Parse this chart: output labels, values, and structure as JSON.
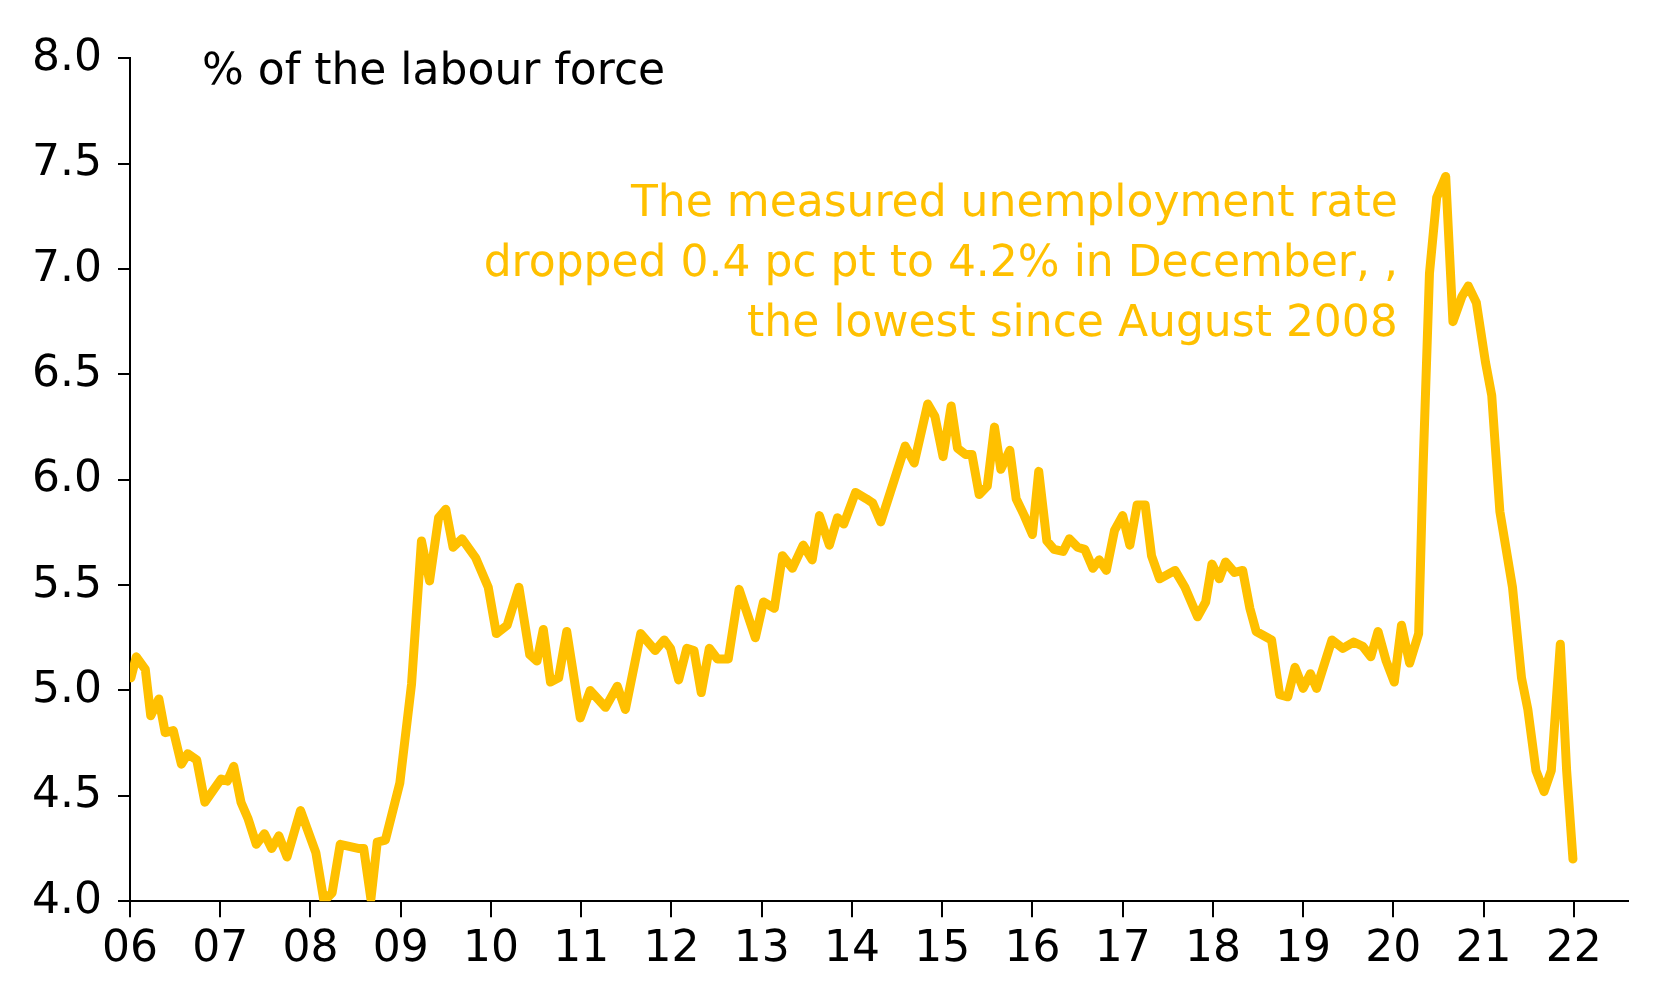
{
  "chart_data": {
    "type": "line",
    "ylabel": "% of the labour force",
    "annotations": [
      "The measured unemployment rate\ndropped 0.4 pc pt to 4.2% in December, ,\nthe lowest since August 2008"
    ],
    "series": [
      {
        "color": "#ffc000",
        "x": [
          2006.01,
          2006.07,
          2006.17,
          2006.23,
          2006.32,
          2006.39,
          2006.48,
          2006.57,
          2006.64,
          2006.74,
          2006.83,
          2007.01,
          2007.08,
          2007.15,
          2007.23,
          2007.31,
          2007.4,
          2007.49,
          2007.57,
          2007.65,
          2007.74,
          2007.89,
          2008.06,
          2008.15,
          2008.24,
          2008.33,
          2008.54,
          2008.59,
          2008.67,
          2008.74,
          2008.83,
          2008.99,
          2009.12,
          2009.23,
          2009.32,
          2009.42,
          2009.5,
          2009.58,
          2009.68,
          2009.83,
          2009.97,
          2010.06,
          2010.18,
          2010.31,
          2010.43,
          2010.51,
          2010.58,
          2010.66,
          2010.75,
          2010.84,
          2010.99,
          2011.1,
          2011.27,
          2011.4,
          2011.49,
          2011.66,
          2011.82,
          2011.92,
          2011.99,
          2012.08,
          2012.17,
          2012.25,
          2012.33,
          2012.42,
          2012.51,
          2012.63,
          2012.75,
          2012.93,
          2013.02,
          2013.14,
          2013.23,
          2013.34,
          2013.46,
          2013.56,
          2013.64,
          2013.75,
          2013.84,
          2013.91,
          2014.04,
          2014.16,
          2014.23,
          2014.32,
          2014.59,
          2014.69,
          2014.84,
          2014.92,
          2015.01,
          2015.1,
          2015.17,
          2015.26,
          2015.33,
          2015.41,
          2015.5,
          2015.58,
          2015.65,
          2015.75,
          2015.82,
          2015.91,
          2016.0,
          2016.07,
          2016.16,
          2016.24,
          2016.34,
          2016.41,
          2016.5,
          2016.58,
          2016.67,
          2016.74,
          2016.82,
          2016.91,
          2017.0,
          2017.08,
          2017.16,
          2017.25,
          2017.32,
          2017.41,
          2017.58,
          2017.69,
          2017.83,
          2017.92,
          2017.99,
          2018.07,
          2018.14,
          2018.24,
          2018.33,
          2018.41,
          2018.48,
          2018.65,
          2018.74,
          2018.83,
          2018.91,
          2019.0,
          2019.08,
          2019.15,
          2019.32,
          2019.44,
          2019.56,
          2019.66,
          2019.75,
          2019.83,
          2019.92,
          2020.01,
          2020.09,
          2020.18,
          2020.28,
          2020.33,
          2020.4,
          2020.48,
          2020.58,
          2020.66,
          2020.76,
          2020.83,
          2020.92,
          2021.02,
          2021.09,
          2021.18,
          2021.32,
          2021.42,
          2021.49,
          2021.58,
          2021.67,
          2021.75,
          2021.85,
          2021.92,
          2021.99
        ],
        "values": [
          5.06,
          5.16,
          5.1,
          4.88,
          4.96,
          4.8,
          4.81,
          4.65,
          4.7,
          4.67,
          4.47,
          4.58,
          4.57,
          4.64,
          4.47,
          4.39,
          4.27,
          4.32,
          4.25,
          4.31,
          4.21,
          4.43,
          4.23,
          4.0,
          4.04,
          4.27,
          4.25,
          4.25,
          4.01,
          4.28,
          4.29,
          4.56,
          5.03,
          5.71,
          5.52,
          5.82,
          5.86,
          5.68,
          5.72,
          5.63,
          5.49,
          5.27,
          5.31,
          5.49,
          5.17,
          5.14,
          5.29,
          5.04,
          5.06,
          5.28,
          4.87,
          5.0,
          4.92,
          5.02,
          4.91,
          5.27,
          5.19,
          5.24,
          5.2,
          5.05,
          5.2,
          5.19,
          4.99,
          5.2,
          5.15,
          5.15,
          5.48,
          5.25,
          5.42,
          5.39,
          5.64,
          5.58,
          5.69,
          5.62,
          5.83,
          5.69,
          5.82,
          5.79,
          5.94,
          5.91,
          5.89,
          5.8,
          6.16,
          6.08,
          6.36,
          6.3,
          6.11,
          6.35,
          6.15,
          6.12,
          6.12,
          5.93,
          5.97,
          6.25,
          6.05,
          6.14,
          5.91,
          5.83,
          5.74,
          6.04,
          5.71,
          5.67,
          5.66,
          5.72,
          5.68,
          5.67,
          5.58,
          5.62,
          5.57,
          5.76,
          5.83,
          5.69,
          5.88,
          5.88,
          5.64,
          5.53,
          5.57,
          5.49,
          5.35,
          5.42,
          5.6,
          5.53,
          5.61,
          5.56,
          5.57,
          5.39,
          5.28,
          5.24,
          4.98,
          4.97,
          5.11,
          5.01,
          5.08,
          5.01,
          5.24,
          5.2,
          5.23,
          5.21,
          5.16,
          5.28,
          5.14,
          5.04,
          5.31,
          5.13,
          5.27,
          6.07,
          6.98,
          7.34,
          7.44,
          6.75,
          6.87,
          6.92,
          6.84,
          6.56,
          6.4,
          5.85,
          5.49,
          5.06,
          4.91,
          4.62,
          4.52,
          4.62,
          5.22,
          4.62,
          4.2
        ]
      }
    ],
    "xlim": [
      2006,
      2022.6
    ],
    "xticks": [
      {
        "value": 2006,
        "label": "06"
      },
      {
        "value": 2007,
        "label": "07"
      },
      {
        "value": 2008,
        "label": "08"
      },
      {
        "value": 2009,
        "label": "09"
      },
      {
        "value": 2010,
        "label": "10"
      },
      {
        "value": 2011,
        "label": "11"
      },
      {
        "value": 2012,
        "label": "12"
      },
      {
        "value": 2013,
        "label": "13"
      },
      {
        "value": 2014,
        "label": "14"
      },
      {
        "value": 2015,
        "label": "15"
      },
      {
        "value": 2016,
        "label": "16"
      },
      {
        "value": 2017,
        "label": "17"
      },
      {
        "value": 2018,
        "label": "18"
      },
      {
        "value": 2019,
        "label": "19"
      },
      {
        "value": 2020,
        "label": "20"
      },
      {
        "value": 2021,
        "label": "21"
      },
      {
        "value": 2022,
        "label": "22"
      }
    ],
    "ylim": [
      4,
      8
    ],
    "yticks": [
      {
        "value": 4,
        "label": "4.0"
      },
      {
        "value": 4.5,
        "label": "4.5"
      },
      {
        "value": 5,
        "label": "5.0"
      },
      {
        "value": 5.5,
        "label": "5.5"
      },
      {
        "value": 6,
        "label": "6.0"
      },
      {
        "value": 6.5,
        "label": "6.5"
      },
      {
        "value": 7,
        "label": "7.0"
      },
      {
        "value": 7.5,
        "label": "7.5"
      },
      {
        "value": 8,
        "label": "8.0"
      }
    ],
    "grid": false,
    "legend": false,
    "marker": "none",
    "line_style": "solid"
  }
}
